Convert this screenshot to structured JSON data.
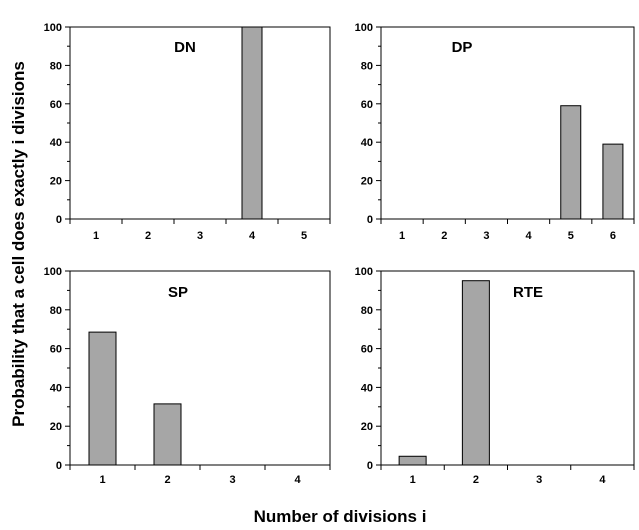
{
  "figure": {
    "ylabel": "Probability that a cell does exactly i divisions",
    "xlabel": "Number of divisions i"
  },
  "colors": {
    "bar_fill": "#a6a6a6",
    "bar_stroke": "#000000",
    "axis": "#000000"
  },
  "chart_data": [
    {
      "type": "bar",
      "title": "DN",
      "categories": [
        "1",
        "2",
        "3",
        "4",
        "5"
      ],
      "values": [
        0,
        0,
        0,
        100,
        0
      ],
      "ylim": [
        0,
        100
      ],
      "yticks": [
        "0",
        "20",
        "40",
        "60",
        "80",
        "100"
      ],
      "grid": false,
      "legend": "none"
    },
    {
      "type": "bar",
      "title": "DP",
      "categories": [
        "1",
        "2",
        "3",
        "4",
        "5",
        "6"
      ],
      "values": [
        0,
        0,
        0,
        0,
        59,
        39
      ],
      "ylim": [
        0,
        100
      ],
      "yticks": [
        "0",
        "20",
        "40",
        "60",
        "80",
        "100"
      ],
      "grid": false,
      "legend": "none"
    },
    {
      "type": "bar",
      "title": "SP",
      "categories": [
        "1",
        "2",
        "3",
        "4"
      ],
      "values": [
        68.5,
        31.5,
        0,
        0
      ],
      "ylim": [
        0,
        100
      ],
      "yticks": [
        "0",
        "20",
        "40",
        "60",
        "80",
        "100"
      ],
      "grid": false,
      "legend": "none"
    },
    {
      "type": "bar",
      "title": "RTE",
      "categories": [
        "1",
        "2",
        "3",
        "4"
      ],
      "values": [
        4.5,
        95,
        0,
        0
      ],
      "ylim": [
        0,
        100
      ],
      "yticks": [
        "0",
        "20",
        "40",
        "60",
        "80",
        "100"
      ],
      "grid": false,
      "legend": "none"
    }
  ]
}
